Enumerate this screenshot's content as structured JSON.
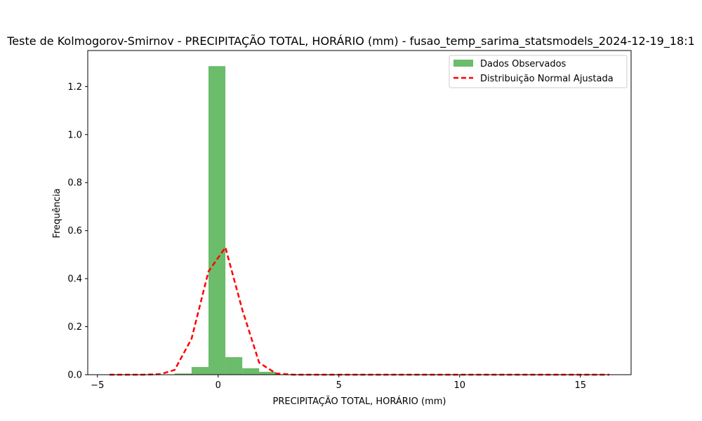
{
  "chart_data": {
    "type": "bar",
    "title": "Teste de Kolmogorov-Smirnov - PRECIPITAÇÃO TOTAL, HORÁRIO (mm) - fusao_temp_sarima_statsmodels_2024-12-19_18:1",
    "xlabel": "PRECIPITAÇÃO TOTAL, HORÁRIO (mm)",
    "ylabel": "Frequência",
    "xlim": [
      -5.4,
      17.1
    ],
    "ylim": [
      0,
      1.35
    ],
    "xticks": [
      -5,
      0,
      5,
      10,
      15
    ],
    "yticks": [
      0.0,
      0.2,
      0.4,
      0.6,
      0.8,
      1.0,
      1.2
    ],
    "grid": false,
    "legend_position": "top-right",
    "histogram": {
      "name": "Dados Observados",
      "color": "#2ca02c",
      "bin_edges": [
        -1.8,
        -1.1,
        -0.4,
        0.3,
        1.0,
        1.7,
        2.4
      ],
      "values": [
        0.005,
        0.032,
        1.285,
        0.073,
        0.027,
        0.012
      ]
    },
    "fit_line": {
      "name": "Distribuição Normal Ajustada",
      "color": "#ff0000",
      "x": [
        -4.5,
        -3.8,
        -3.1,
        -2.4,
        -1.8,
        -1.1,
        -0.4,
        0.3,
        1.0,
        1.7,
        2.4,
        3.1,
        3.8,
        4.5,
        5.2,
        6.0,
        7.0,
        8.0,
        9.0,
        10.0,
        11.0,
        12.0,
        13.0,
        14.0,
        15.0,
        16.2
      ],
      "y": [
        0.0,
        0.0,
        0.0,
        0.002,
        0.02,
        0.15,
        0.43,
        0.53,
        0.27,
        0.05,
        0.005,
        0.0,
        0.0,
        0.0,
        0.0,
        0.0,
        0.0,
        0.0,
        0.0,
        0.0,
        0.0,
        0.0,
        0.0,
        0.0,
        0.0,
        0.0
      ]
    }
  }
}
